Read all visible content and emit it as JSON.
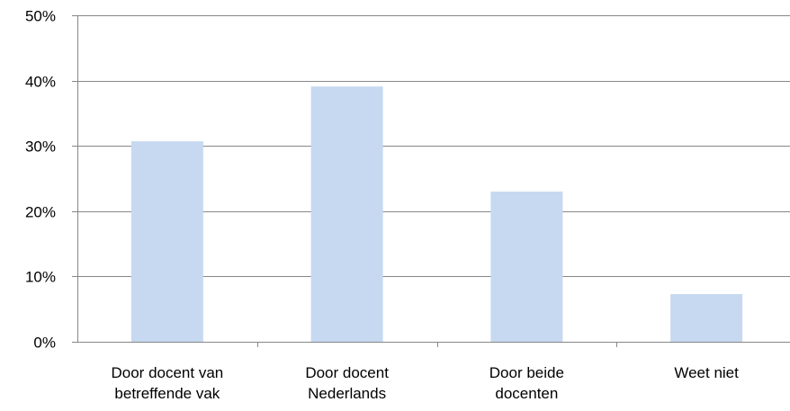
{
  "chart_data": {
    "type": "bar",
    "title": "",
    "xlabel": "",
    "ylabel": "",
    "categories": [
      [
        "Door docent van",
        "betreffende vak"
      ],
      [
        "Door docent",
        "Nederlands"
      ],
      [
        "Door beide",
        "docenten"
      ],
      [
        "Weet niet"
      ]
    ],
    "values": [
      30.7,
      39.1,
      23.0,
      7.3
    ],
    "ylim": [
      0,
      50
    ],
    "yticks": [
      "0%",
      "10%",
      "20%",
      "30%",
      "40%",
      "50%"
    ],
    "grid": true,
    "legend": "none",
    "bar_color": "#c6d9f1",
    "grid_color": "#878787"
  }
}
